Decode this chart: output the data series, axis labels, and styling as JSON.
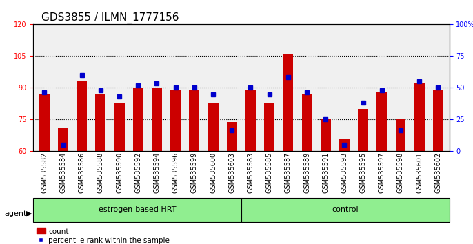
{
  "title": "GDS3855 / ILMN_1777156",
  "samples": [
    "GSM535582",
    "GSM535584",
    "GSM535586",
    "GSM535588",
    "GSM535590",
    "GSM535592",
    "GSM535594",
    "GSM535596",
    "GSM535599",
    "GSM535600",
    "GSM535603",
    "GSM535583",
    "GSM535585",
    "GSM535587",
    "GSM535589",
    "GSM535591",
    "GSM535593",
    "GSM535595",
    "GSM535597",
    "GSM535598",
    "GSM535601",
    "GSM535602"
  ],
  "red_values": [
    87,
    71,
    93,
    87,
    83,
    90,
    90,
    89,
    89,
    83,
    74,
    89,
    83,
    106,
    87,
    75,
    66,
    80,
    88,
    75,
    92,
    89
  ],
  "blue_values": [
    88,
    63,
    96,
    89,
    86,
    91,
    92,
    90,
    90,
    87,
    70,
    90,
    87,
    95,
    88,
    75,
    63,
    83,
    89,
    70,
    93,
    90
  ],
  "group_labels": [
    "estrogen-based HRT",
    "control"
  ],
  "group_counts": [
    11,
    11
  ],
  "ylim_left": [
    60,
    120
  ],
  "ylim_right": [
    0,
    100
  ],
  "yticks_left": [
    60,
    75,
    90,
    105,
    120
  ],
  "yticks_right": [
    0,
    25,
    50,
    75,
    100
  ],
  "ytick_labels_right": [
    "0",
    "25",
    "50",
    "75",
    "100%"
  ],
  "bar_color": "#cc0000",
  "dot_color": "#0000cc",
  "bg_color": "#e8e8e8",
  "group_bg_color": "#90ee90",
  "title_fontsize": 11,
  "tick_fontsize": 7,
  "label_fontsize": 8
}
